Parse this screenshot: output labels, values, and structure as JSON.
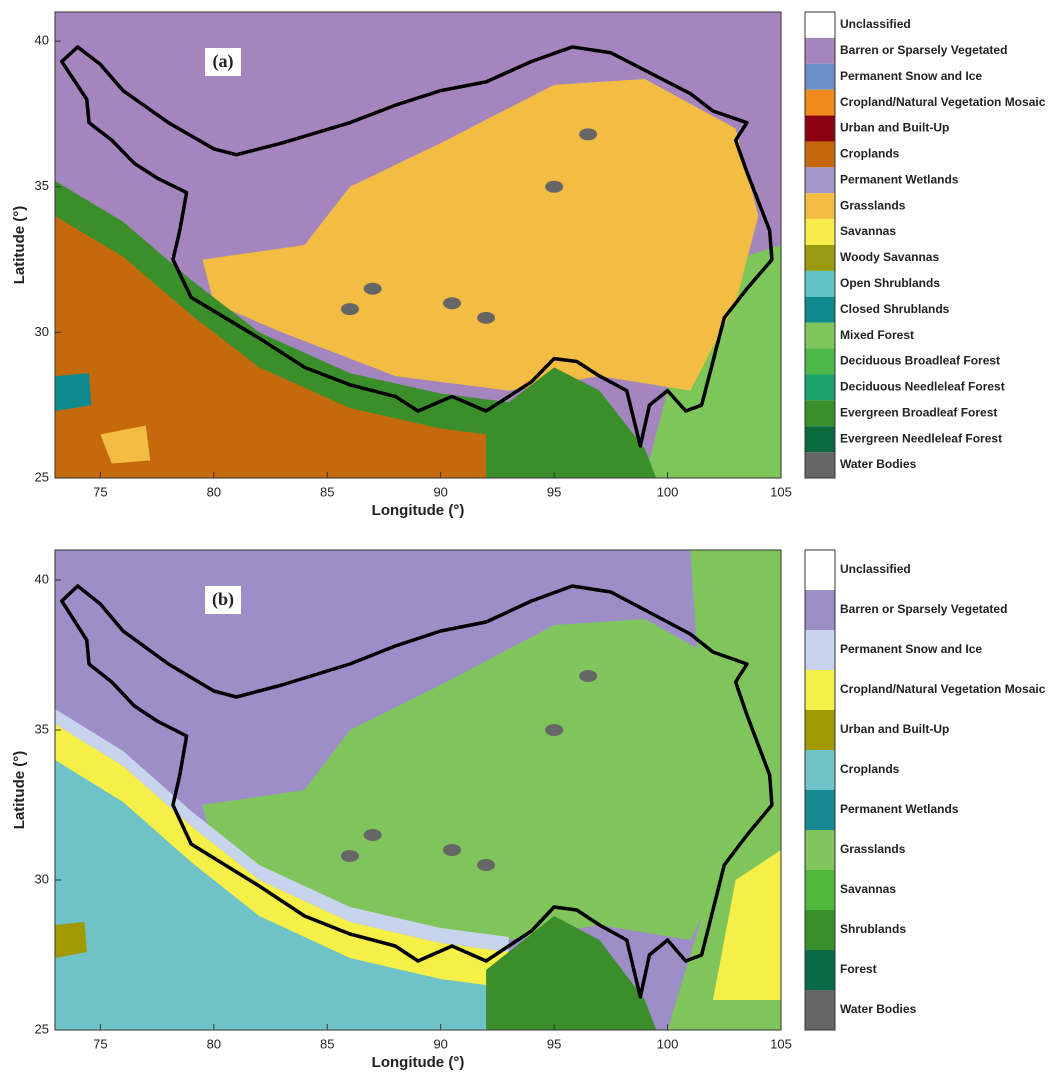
{
  "panels": [
    {
      "label": "(a)",
      "xlabel": "Longitude (°)",
      "ylabel": "Latitude (°)",
      "xlim": [
        73,
        105
      ],
      "ylim": [
        25,
        41
      ],
      "xticks": [
        75,
        80,
        85,
        90,
        95,
        100,
        105
      ],
      "yticks": [
        25,
        30,
        35,
        40
      ],
      "legend": [
        {
          "name": "Unclassified",
          "color": "#ffffff"
        },
        {
          "name": "Barren or Sparsely Vegetated",
          "color": "#a585bd"
        },
        {
          "name": "Permanent Snow and Ice",
          "color": "#6b8fc9"
        },
        {
          "name": "Cropland/Natural Vegetation Mosaic",
          "color": "#f08a1a"
        },
        {
          "name": "Urban and Built-Up",
          "color": "#8b0012"
        },
        {
          "name": "Croplands",
          "color": "#c46a0c"
        },
        {
          "name": "Permanent Wetlands",
          "color": "#a596c9"
        },
        {
          "name": "Grasslands",
          "color": "#f2bd42"
        },
        {
          "name": "Savannas",
          "color": "#f7ec4a"
        },
        {
          "name": "Woody Savannas",
          "color": "#9c9a10"
        },
        {
          "name": "Open Shrublands",
          "color": "#5fc3c5"
        },
        {
          "name": "Closed Shrublands",
          "color": "#0e8a8e"
        },
        {
          "name": "Mixed Forest",
          "color": "#7fc65a"
        },
        {
          "name": "Deciduous Broadleaf Forest",
          "color": "#4cb84a"
        },
        {
          "name": "Deciduous Needleleaf Forest",
          "color": "#1aa36a"
        },
        {
          "name": "Evergreen Broadleaf Forest",
          "color": "#3a8f2a"
        },
        {
          "name": "Evergreen Needleleaf Forest",
          "color": "#0a6a3c"
        },
        {
          "name": "Water Bodies",
          "color": "#666666"
        }
      ]
    },
    {
      "label": "(b)",
      "xlabel": "Longitude (°)",
      "ylabel": "Latitude (°)",
      "xlim": [
        73,
        105
      ],
      "ylim": [
        25,
        41
      ],
      "xticks": [
        75,
        80,
        85,
        90,
        95,
        100,
        105
      ],
      "yticks": [
        25,
        30,
        35,
        40
      ],
      "legend": [
        {
          "name": "Unclassified",
          "color": "#ffffff"
        },
        {
          "name": "Barren or Sparsely Vegetated",
          "color": "#9d8ec8"
        },
        {
          "name": "Permanent Snow and Ice",
          "color": "#c8d4ee"
        },
        {
          "name": "Cropland/Natural Vegetation Mosaic",
          "color": "#f6ef48"
        },
        {
          "name": "Urban and Built-Up",
          "color": "#a09a00"
        },
        {
          "name": "Croplands",
          "color": "#6dc3c8"
        },
        {
          "name": "Permanent Wetlands",
          "color": "#168a93"
        },
        {
          "name": "Grasslands",
          "color": "#80c45c"
        },
        {
          "name": "Savannas",
          "color": "#4fb83a"
        },
        {
          "name": "Shrublands",
          "color": "#3a8f2a"
        },
        {
          "name": "Forest",
          "color": "#0a6a48"
        },
        {
          "name": "Water Bodies",
          "color": "#666666"
        }
      ]
    }
  ]
}
